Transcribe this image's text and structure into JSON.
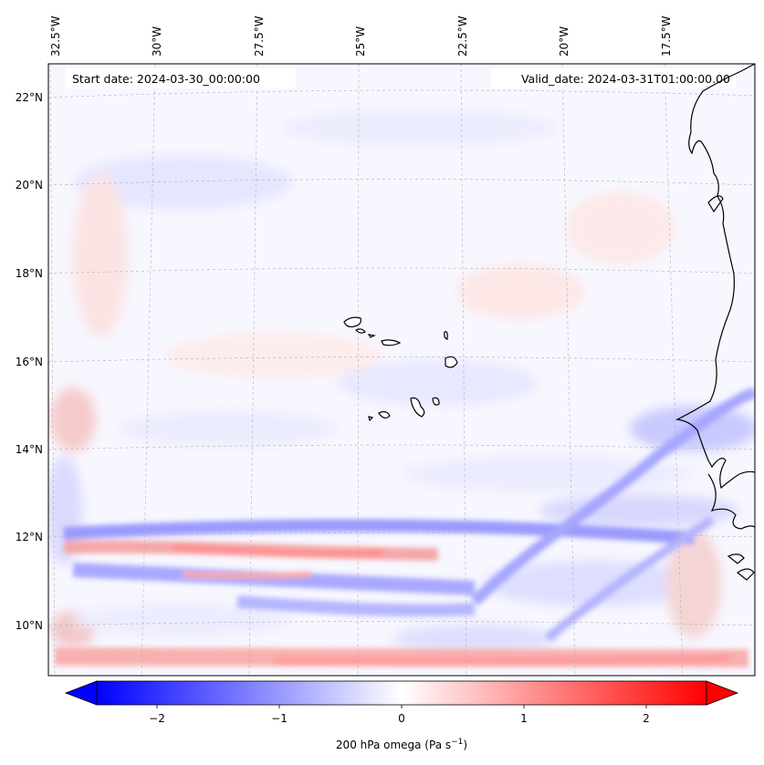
{
  "header": {
    "start_date": "Start date: 2024-03-30_00:00:00",
    "valid_date": "Valid_date: 2024-03-31T01:00:00.00"
  },
  "axes": {
    "lon_labels": [
      "32.5°W",
      "30°W",
      "27.5°W",
      "25°W",
      "22.5°W",
      "20°W",
      "17.5°W"
    ],
    "lat_labels": [
      "22°N",
      "20°N",
      "18°N",
      "16°N",
      "14°N",
      "12°N",
      "10°N"
    ],
    "gridlines": true
  },
  "map": {
    "projection": "lambert-conformal",
    "field": "200 hPa vertical velocity (omega)",
    "features": [
      "Cape Verde islands",
      "West African coastline (Senegal, Gambia, Guinea-Bissau)"
    ]
  },
  "colorbar": {
    "label_main": "200 hPa omega (Pa s",
    "label_sup": "−1",
    "label_end": ")",
    "ticks": [
      "−2",
      "−1",
      "0",
      "1",
      "2"
    ],
    "range": [
      -2.6,
      2.6
    ],
    "colormap": "bwr",
    "extend": "both",
    "colors": {
      "negative": "#0000ff",
      "zero": "#ffffff",
      "positive": "#ff0000"
    }
  }
}
